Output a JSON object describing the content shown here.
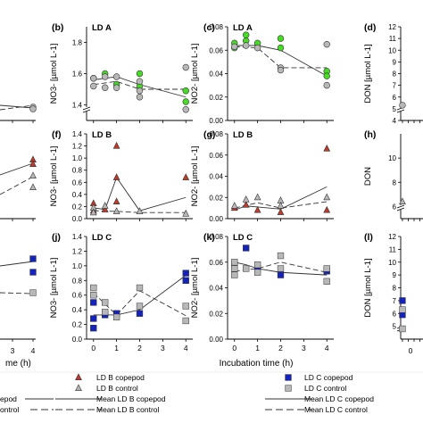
{
  "figure": {
    "x_axis_title": "Incubation time (h)",
    "x_axis_title_partial": "me (h)",
    "left_partial_ticks": [
      "3",
      "4"
    ],
    "right_partial_tick": "0"
  },
  "legend": {
    "entries": [
      {
        "label": "LD B copepod",
        "marker": "triangle",
        "fill": "#c0392b"
      },
      {
        "label": "LD B control",
        "marker": "triangle",
        "fill": "#b8b8b8"
      },
      {
        "label": "Mean LD B copepod",
        "line": "solid"
      },
      {
        "label": "Mean LD B control",
        "line": "dashed"
      },
      {
        "label": "LD C copepod",
        "marker": "square",
        "fill": "#1524b8"
      },
      {
        "label": "LD C control",
        "marker": "square",
        "fill": "#b8b8b8"
      },
      {
        "label": "Mean LD C copepod",
        "line": "solid"
      },
      {
        "label": "Mean LD C control",
        "line": "dashed"
      }
    ],
    "partial_left": [
      "epod",
      "ontrol"
    ]
  },
  "colors": {
    "ld_a_copepod": "#44dd22",
    "ld_a_control": "#b8b8b8",
    "ld_b_copepod": "#c0392b",
    "ld_b_control": "#b8b8b8",
    "ld_c_copepod": "#1524b8",
    "ld_c_control": "#b8b8b8"
  },
  "chart_data": [
    {
      "panel": "(b)",
      "station": "LD A",
      "type": "scatter",
      "ylabel": "NO3- [µmol L-1]",
      "y_ticks": [
        "1.4",
        "1.6",
        "1.8"
      ],
      "y_break": true,
      "ylim": [
        1.3,
        1.9
      ],
      "x_ticks": [],
      "series": [
        {
          "name": "LD A copepod",
          "marker": "circle",
          "points": [
            [
              0,
              1.57
            ],
            [
              0.5,
              1.6
            ],
            [
              1,
              1.53
            ],
            [
              2,
              1.6
            ],
            [
              2,
              1.52
            ],
            [
              4,
              1.49
            ],
            [
              4,
              1.42
            ]
          ]
        },
        {
          "name": "LD A control",
          "marker": "circle",
          "points": [
            [
              0,
              1.57
            ],
            [
              0,
              1.52
            ],
            [
              0.5,
              1.58
            ],
            [
              0.5,
              1.51
            ],
            [
              1,
              1.58
            ],
            [
              1,
              1.51
            ],
            [
              2,
              1.55
            ],
            [
              2,
              1.49
            ],
            [
              2,
              1.45
            ],
            [
              4,
              1.64
            ],
            [
              4,
              1.37
            ]
          ]
        },
        {
          "name": "Mean LD A copepod",
          "line": "solid",
          "points": [
            [
              0,
              1.56
            ],
            [
              1,
              1.58
            ],
            [
              2,
              1.53
            ],
            [
              4,
              1.45
            ]
          ]
        },
        {
          "name": "Mean LD A control",
          "line": "dashed",
          "points": [
            [
              0,
              1.53
            ],
            [
              1,
              1.55
            ],
            [
              2,
              1.5
            ],
            [
              4,
              1.5
            ]
          ]
        }
      ]
    },
    {
      "panel": "(c)",
      "station": "LD A",
      "type": "scatter",
      "ylabel": "NO2- [µmol L-1]",
      "y_ticks": [
        "0.00",
        "0.02",
        "0.04",
        "0.06",
        "0.08"
      ],
      "ylim": [
        0,
        0.08
      ],
      "x_ticks": [],
      "series": [
        {
          "name": "LD A copepod",
          "marker": "circle",
          "points": [
            [
              0,
              0.062
            ],
            [
              0,
              0.066
            ],
            [
              0.5,
              0.068
            ],
            [
              0.5,
              0.073
            ],
            [
              1,
              0.066
            ],
            [
              2,
              0.062
            ],
            [
              2,
              0.07
            ],
            [
              4,
              0.042
            ],
            [
              4,
              0.038
            ]
          ]
        },
        {
          "name": "LD A control",
          "marker": "circle",
          "points": [
            [
              0,
              0.063
            ],
            [
              0.5,
              0.064
            ],
            [
              1,
              0.062
            ],
            [
              2,
              0.045
            ],
            [
              2,
              0.043
            ],
            [
              4,
              0.065
            ],
            [
              4,
              0.03
            ]
          ]
        },
        {
          "name": "Mean LD A copepod",
          "line": "solid",
          "points": [
            [
              0,
              0.064
            ],
            [
              1,
              0.064
            ],
            [
              2,
              0.06
            ],
            [
              4,
              0.038
            ]
          ]
        },
        {
          "name": "Mean LD A control",
          "line": "dashed",
          "points": [
            [
              0,
              0.063
            ],
            [
              1,
              0.062
            ],
            [
              2,
              0.045
            ],
            [
              4,
              0.045
            ]
          ]
        }
      ]
    },
    {
      "panel": "(d)",
      "type": "scatter",
      "partial": true,
      "ylabel": "DON [µmol L-1]",
      "y_ticks": [
        "4",
        "5",
        "6",
        "7",
        "8",
        "9",
        "10",
        "11",
        "12"
      ],
      "y_break": true,
      "ylim": [
        4,
        12
      ],
      "series": [
        {
          "name": "LD A control",
          "marker": "circle",
          "points": [
            [
              0,
              5.3
            ]
          ]
        }
      ]
    },
    {
      "panel": "(f)",
      "station": "LD B",
      "type": "scatter",
      "ylabel": "NO3- [µmol L-1]",
      "y_ticks": [
        "0.0",
        "0.2",
        "0.4",
        "0.6",
        "0.8",
        "1.0",
        "1.2",
        "1.4"
      ],
      "ylim": [
        0,
        1.4
      ],
      "x_ticks": [],
      "series": [
        {
          "name": "LD B copepod",
          "marker": "triangle",
          "points": [
            [
              0,
              0.25
            ],
            [
              0,
              0.13
            ],
            [
              0.5,
              0.15
            ],
            [
              1,
              1.2
            ],
            [
              1,
              0.68
            ],
            [
              1,
              0.28
            ],
            [
              4,
              0.68
            ]
          ]
        },
        {
          "name": "LD B control",
          "marker": "triangle",
          "points": [
            [
              0,
              0.18
            ],
            [
              0,
              0.1
            ],
            [
              0.5,
              0.21
            ],
            [
              1,
              0.12
            ],
            [
              2,
              0.12
            ],
            [
              4,
              0.08
            ]
          ]
        },
        {
          "name": "Mean LD B copepod",
          "line": "solid",
          "points": [
            [
              0,
              0.18
            ],
            [
              0.5,
              0.15
            ],
            [
              1,
              0.68
            ],
            [
              2,
              0.13
            ],
            [
              4,
              0.35
            ]
          ]
        },
        {
          "name": "Mean LD B control",
          "line": "dashed",
          "points": [
            [
              0,
              0.13
            ],
            [
              1,
              0.12
            ],
            [
              2,
              0.1
            ],
            [
              4,
              0.1
            ]
          ]
        }
      ]
    },
    {
      "panel": "(g)",
      "station": "LD B",
      "type": "scatter",
      "ylabel": "NO2- [µmol L-1]",
      "y_ticks": [
        "0.00",
        "0.02",
        "0.04",
        "0.06",
        "0.08"
      ],
      "ylim": [
        0,
        0.08
      ],
      "x_ticks": [],
      "series": [
        {
          "name": "LD B copepod",
          "marker": "triangle",
          "points": [
            [
              0,
              0.01
            ],
            [
              0.5,
              0.013
            ],
            [
              1,
              0.008
            ],
            [
              2,
              0.006
            ],
            [
              4,
              0.066
            ],
            [
              4,
              0.008
            ]
          ]
        },
        {
          "name": "LD B control",
          "marker": "triangle",
          "points": [
            [
              0,
              0.012
            ],
            [
              0.5,
              0.018
            ],
            [
              1,
              0.02
            ],
            [
              2,
              0.017
            ],
            [
              2,
              0.012
            ],
            [
              4,
              0.02
            ]
          ]
        },
        {
          "name": "Mean LD B copepod",
          "line": "solid",
          "points": [
            [
              0,
              0.008
            ],
            [
              0.5,
              0.012
            ],
            [
              1,
              0.011
            ],
            [
              2,
              0.009
            ],
            [
              4,
              0.03
            ]
          ]
        },
        {
          "name": "Mean LD B control",
          "line": "dashed",
          "points": [
            [
              0,
              0.01
            ],
            [
              1,
              0.015
            ],
            [
              2,
              0.01
            ],
            [
              4,
              0.016
            ]
          ]
        }
      ]
    },
    {
      "panel": "(h)",
      "type": "scatter",
      "partial": true,
      "ylabel": "DON",
      "y_ticks": [
        "6",
        "8",
        "10"
      ],
      "y_break": true,
      "ylim": [
        5,
        12
      ],
      "series": [
        {
          "name": "LD B control",
          "marker": "triangle",
          "points": [
            [
              0,
              6.4
            ]
          ]
        }
      ]
    },
    {
      "panel": "(j)",
      "station": "LD C",
      "type": "scatter",
      "ylabel": "NO3- [µmol L-1]",
      "y_ticks": [
        "0.0",
        "0.2",
        "0.4",
        "0.6",
        "0.8",
        "1.0",
        "1.2",
        "1.4"
      ],
      "ylim": [
        0,
        1.4
      ],
      "x_ticks": [
        "0",
        "1",
        "2",
        "3",
        "4"
      ],
      "xlim": [
        -0.3,
        4.3
      ],
      "series": [
        {
          "name": "LD C copepod",
          "marker": "square",
          "points": [
            [
              0,
              0.5
            ],
            [
              0,
              0.28
            ],
            [
              0,
              0.15
            ],
            [
              0.5,
              0.33
            ],
            [
              1,
              0.35
            ],
            [
              2,
              0.35
            ],
            [
              4,
              0.9
            ],
            [
              4,
              0.8
            ]
          ]
        },
        {
          "name": "LD C control",
          "marker": "square",
          "points": [
            [
              0,
              0.7
            ],
            [
              0,
              0.6
            ],
            [
              0.5,
              0.5
            ],
            [
              0.5,
              0.37
            ],
            [
              1,
              0.3
            ],
            [
              2,
              0.7
            ],
            [
              2,
              0.45
            ],
            [
              4,
              0.45
            ],
            [
              4,
              0.25
            ]
          ]
        },
        {
          "name": "Mean LD C copepod",
          "line": "solid",
          "points": [
            [
              0,
              0.33
            ],
            [
              1,
              0.33
            ],
            [
              2,
              0.4
            ],
            [
              4,
              0.87
            ]
          ]
        },
        {
          "name": "Mean LD C control",
          "line": "dashed",
          "points": [
            [
              0,
              0.63
            ],
            [
              1,
              0.33
            ],
            [
              2,
              0.66
            ],
            [
              4,
              0.32
            ]
          ]
        }
      ]
    },
    {
      "panel": "(k)",
      "station": "LD C",
      "type": "scatter",
      "ylabel": "NO2- [µmol L-1]",
      "y_ticks": [
        "0.00",
        "0.02",
        "0.04",
        "0.06",
        "0.08"
      ],
      "ylim": [
        0,
        0.08
      ],
      "x_ticks": [
        "0",
        "1",
        "2",
        "3",
        "4"
      ],
      "xlim": [
        -0.3,
        4.3
      ],
      "series": [
        {
          "name": "LD C copepod",
          "marker": "square",
          "points": [
            [
              0,
              0.058
            ],
            [
              0.5,
              0.071
            ],
            [
              1,
              0.055
            ],
            [
              2,
              0.05
            ],
            [
              4,
              0.053
            ]
          ]
        },
        {
          "name": "LD C control",
          "marker": "square",
          "points": [
            [
              0,
              0.06
            ],
            [
              0,
              0.055
            ],
            [
              0,
              0.05
            ],
            [
              0.5,
              0.055
            ],
            [
              1,
              0.058
            ],
            [
              1,
              0.052
            ],
            [
              2,
              0.065
            ],
            [
              2,
              0.055
            ],
            [
              4,
              0.055
            ],
            [
              4,
              0.045
            ]
          ]
        },
        {
          "name": "Mean LD C copepod",
          "line": "solid",
          "points": [
            [
              0,
              0.06
            ],
            [
              0.5,
              0.058
            ],
            [
              1,
              0.055
            ],
            [
              2,
              0.052
            ],
            [
              4,
              0.05
            ]
          ]
        },
        {
          "name": "Mean LD C control",
          "line": "dashed",
          "points": [
            [
              0,
              0.053
            ],
            [
              1,
              0.055
            ],
            [
              2,
              0.06
            ],
            [
              4,
              0.052
            ]
          ]
        }
      ]
    },
    {
      "panel": "(l)",
      "type": "scatter",
      "partial": true,
      "ylabel": "DON [µmol L-1]",
      "y_ticks": [
        "5",
        "6",
        "7",
        "8",
        "9",
        "10",
        "11",
        "12"
      ],
      "y_break": true,
      "ylim": [
        4,
        12
      ],
      "series": [
        {
          "name": "LD C copepod",
          "marker": "square",
          "points": [
            [
              0,
              7.0
            ],
            [
              0,
              5.9
            ]
          ]
        },
        {
          "name": "LD C control",
          "marker": "square",
          "points": [
            [
              0,
              6.3
            ],
            [
              0,
              4.8
            ]
          ]
        }
      ]
    },
    {
      "panel": "left-partial-top",
      "type": "scatter",
      "partial": true,
      "series": [
        {
          "name": "LD A control",
          "marker": "circle",
          "points": [
            [
              4,
              null
            ]
          ]
        }
      ]
    },
    {
      "panel": "left-partial-mid",
      "type": "scatter",
      "partial": true,
      "series": [
        {
          "name": "LD B copepod",
          "marker": "triangle",
          "points": [
            [
              4,
              null
            ]
          ]
        },
        {
          "name": "LD B control",
          "marker": "triangle",
          "points": [
            [
              4,
              null
            ]
          ]
        }
      ]
    },
    {
      "panel": "left-partial-bottom",
      "type": "scatter",
      "partial": true,
      "x_ticks": [
        "3",
        "4"
      ],
      "series": [
        {
          "name": "LD C copepod",
          "marker": "square",
          "points": [
            [
              4,
              null
            ],
            [
              4,
              null
            ]
          ]
        },
        {
          "name": "LD C control",
          "marker": "square",
          "points": [
            [
              4,
              null
            ]
          ]
        }
      ]
    }
  ]
}
